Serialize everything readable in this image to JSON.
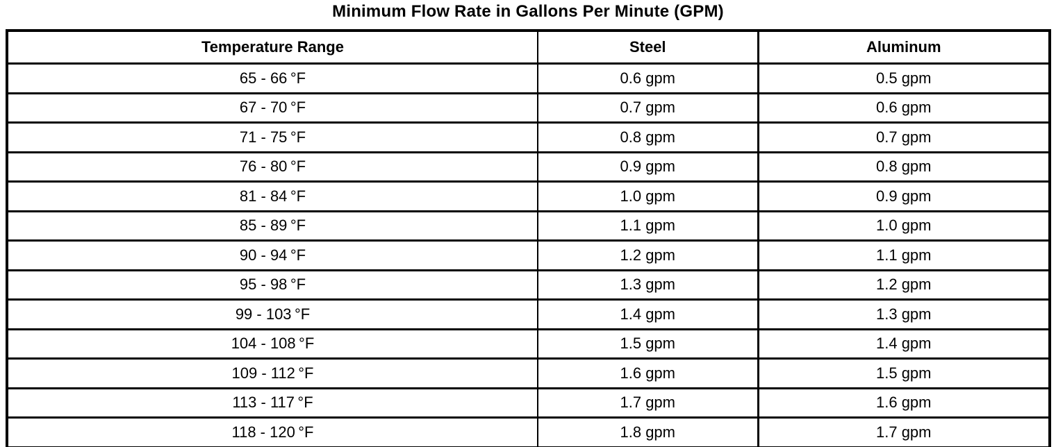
{
  "title": "Minimum Flow Rate in Gallons Per Minute (GPM)",
  "colors": {
    "background": "#ffffff",
    "border": "#000000",
    "text": "#000000"
  },
  "table": {
    "columns": [
      "Temperature Range",
      "Steel",
      "Aluminum"
    ],
    "rows": [
      {
        "range": "65 - 66 °F",
        "steel": "0.6 gpm",
        "aluminum": "0.5 gpm"
      },
      {
        "range": "67 - 70 °F",
        "steel": "0.7 gpm",
        "aluminum": "0.6 gpm"
      },
      {
        "range": "71 - 75 °F",
        "steel": "0.8 gpm",
        "aluminum": "0.7 gpm"
      },
      {
        "range": "76 - 80 °F",
        "steel": "0.9 gpm",
        "aluminum": "0.8 gpm"
      },
      {
        "range": "81 - 84 °F",
        "steel": "1.0 gpm",
        "aluminum": "0.9 gpm"
      },
      {
        "range": "85 - 89 °F",
        "steel": "1.1 gpm",
        "aluminum": "1.0 gpm"
      },
      {
        "range": "90 - 94 °F",
        "steel": "1.2 gpm",
        "aluminum": "1.1 gpm"
      },
      {
        "range": "95 - 98 °F",
        "steel": "1.3 gpm",
        "aluminum": "1.2 gpm"
      },
      {
        "range": "99 - 103 °F",
        "steel": "1.4 gpm",
        "aluminum": "1.3 gpm"
      },
      {
        "range": "104 - 108 °F",
        "steel": "1.5 gpm",
        "aluminum": "1.4 gpm"
      },
      {
        "range": "109 - 112 °F",
        "steel": "1.6 gpm",
        "aluminum": "1.5 gpm"
      },
      {
        "range": "113 - 117 °F",
        "steel": "1.7 gpm",
        "aluminum": "1.6 gpm"
      },
      {
        "range": "118 - 120 °F",
        "steel": "1.8 gpm",
        "aluminum": "1.7 gpm"
      }
    ]
  },
  "chart_data": {
    "type": "table",
    "title": "Minimum Flow Rate in Gallons Per Minute (GPM)",
    "columns": [
      "Temperature Range",
      "Steel",
      "Aluminum"
    ],
    "categories": [
      "65 - 66 °F",
      "67 - 70 °F",
      "71 - 75 °F",
      "76 - 80 °F",
      "81 - 84 °F",
      "85 - 89 °F",
      "90 - 94 °F",
      "95 - 98 °F",
      "99 - 103 °F",
      "104 - 108 °F",
      "109 - 112 °F",
      "113 - 117 °F",
      "118 - 120 °F"
    ],
    "series": [
      {
        "name": "Steel (gpm)",
        "values": [
          0.6,
          0.7,
          0.8,
          0.9,
          1.0,
          1.1,
          1.2,
          1.3,
          1.4,
          1.5,
          1.6,
          1.7,
          1.8
        ]
      },
      {
        "name": "Aluminum (gpm)",
        "values": [
          0.5,
          0.6,
          0.7,
          0.8,
          0.9,
          1.0,
          1.1,
          1.2,
          1.3,
          1.4,
          1.5,
          1.6,
          1.7
        ]
      }
    ],
    "unit": "gpm"
  }
}
